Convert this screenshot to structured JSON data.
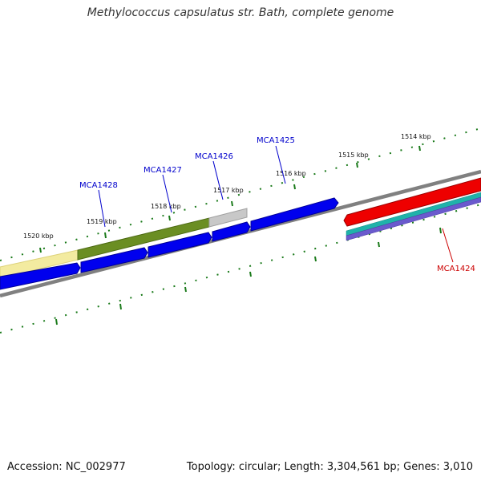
{
  "title": "Methylococcus capsulatus str. Bath, complete genome",
  "footer": {
    "accession": "Accession: NC_002977",
    "stats": "Topology: circular; Length: 3,304,561 bp; Genes: 3,010"
  },
  "scale_labels": [
    "1514 kbp",
    "1515 kbp",
    "1516 kbp",
    "1517 kbp",
    "1518 kbp",
    "1519 kbp",
    "1520 kbp"
  ],
  "gene_labels": [
    {
      "name": "MCA1428",
      "color": "#0000cc"
    },
    {
      "name": "MCA1427",
      "color": "#0000cc"
    },
    {
      "name": "MCA1426",
      "color": "#0000cc"
    },
    {
      "name": "MCA1425",
      "color": "#0000cc"
    },
    {
      "name": "MCA1424",
      "color": "#cc0000"
    }
  ],
  "colors": {
    "forward_cds": "#0000ee",
    "reverse_cds": "#ee0000",
    "backbone": "#808080",
    "ticks": "#1a7a1a",
    "olive": "#6b8e23",
    "pale_yellow": "#f3eba0",
    "light_gray": "#c8c8c8",
    "teal": "#20b2aa",
    "purple": "#6a5acd"
  }
}
